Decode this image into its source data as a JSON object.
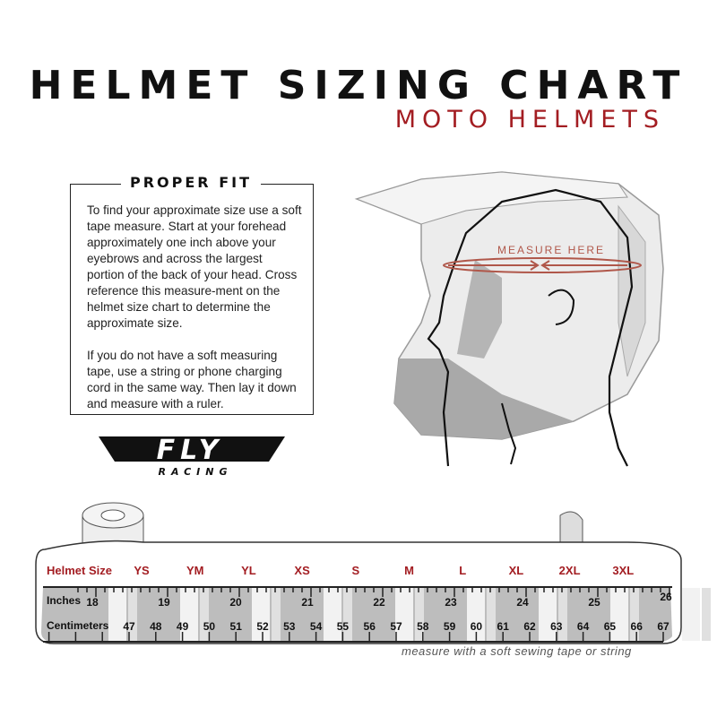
{
  "title": "HELMET SIZING CHART",
  "subtitle": "MOTO HELMETS",
  "proper_fit": {
    "heading": "PROPER FIT",
    "paragraphs": [
      "To find your approximate size use a soft tape measure. Start at your forehead approximately one inch above your eyebrows and across the largest portion of the back of your head. Cross reference this measure-ment on the helmet size chart to determine the approximate size.",
      "If you do not have a soft measuring tape, use a string or phone charging cord in the same way. Then lay it down and measure with a ruler."
    ]
  },
  "illustration": {
    "measure_label": "MEASURE HERE"
  },
  "logo": {
    "text": "FLY",
    "subtext": "RACING"
  },
  "tape": {
    "row_labels": {
      "size": "Helmet Size",
      "inches": "Inches",
      "cm": "Centimeters"
    },
    "sizes": [
      "YS",
      "YM",
      "YL",
      "XS",
      "S",
      "M",
      "L",
      "XL",
      "2XL",
      "3XL"
    ],
    "inches": [
      "18",
      "19",
      "20",
      "21",
      "22",
      "23",
      "24",
      "25",
      "26"
    ],
    "centimeters": [
      "47",
      "48",
      "49",
      "50",
      "51",
      "52",
      "53",
      "54",
      "55",
      "56",
      "57",
      "58",
      "59",
      "60",
      "61",
      "62",
      "63",
      "64",
      "65",
      "66",
      "67"
    ]
  },
  "caption": "measure with a soft sewing tape or string",
  "colors": {
    "accent_red": "#a31d22",
    "tape_gray": "#bdbdbd",
    "text_dark": "#111111"
  }
}
